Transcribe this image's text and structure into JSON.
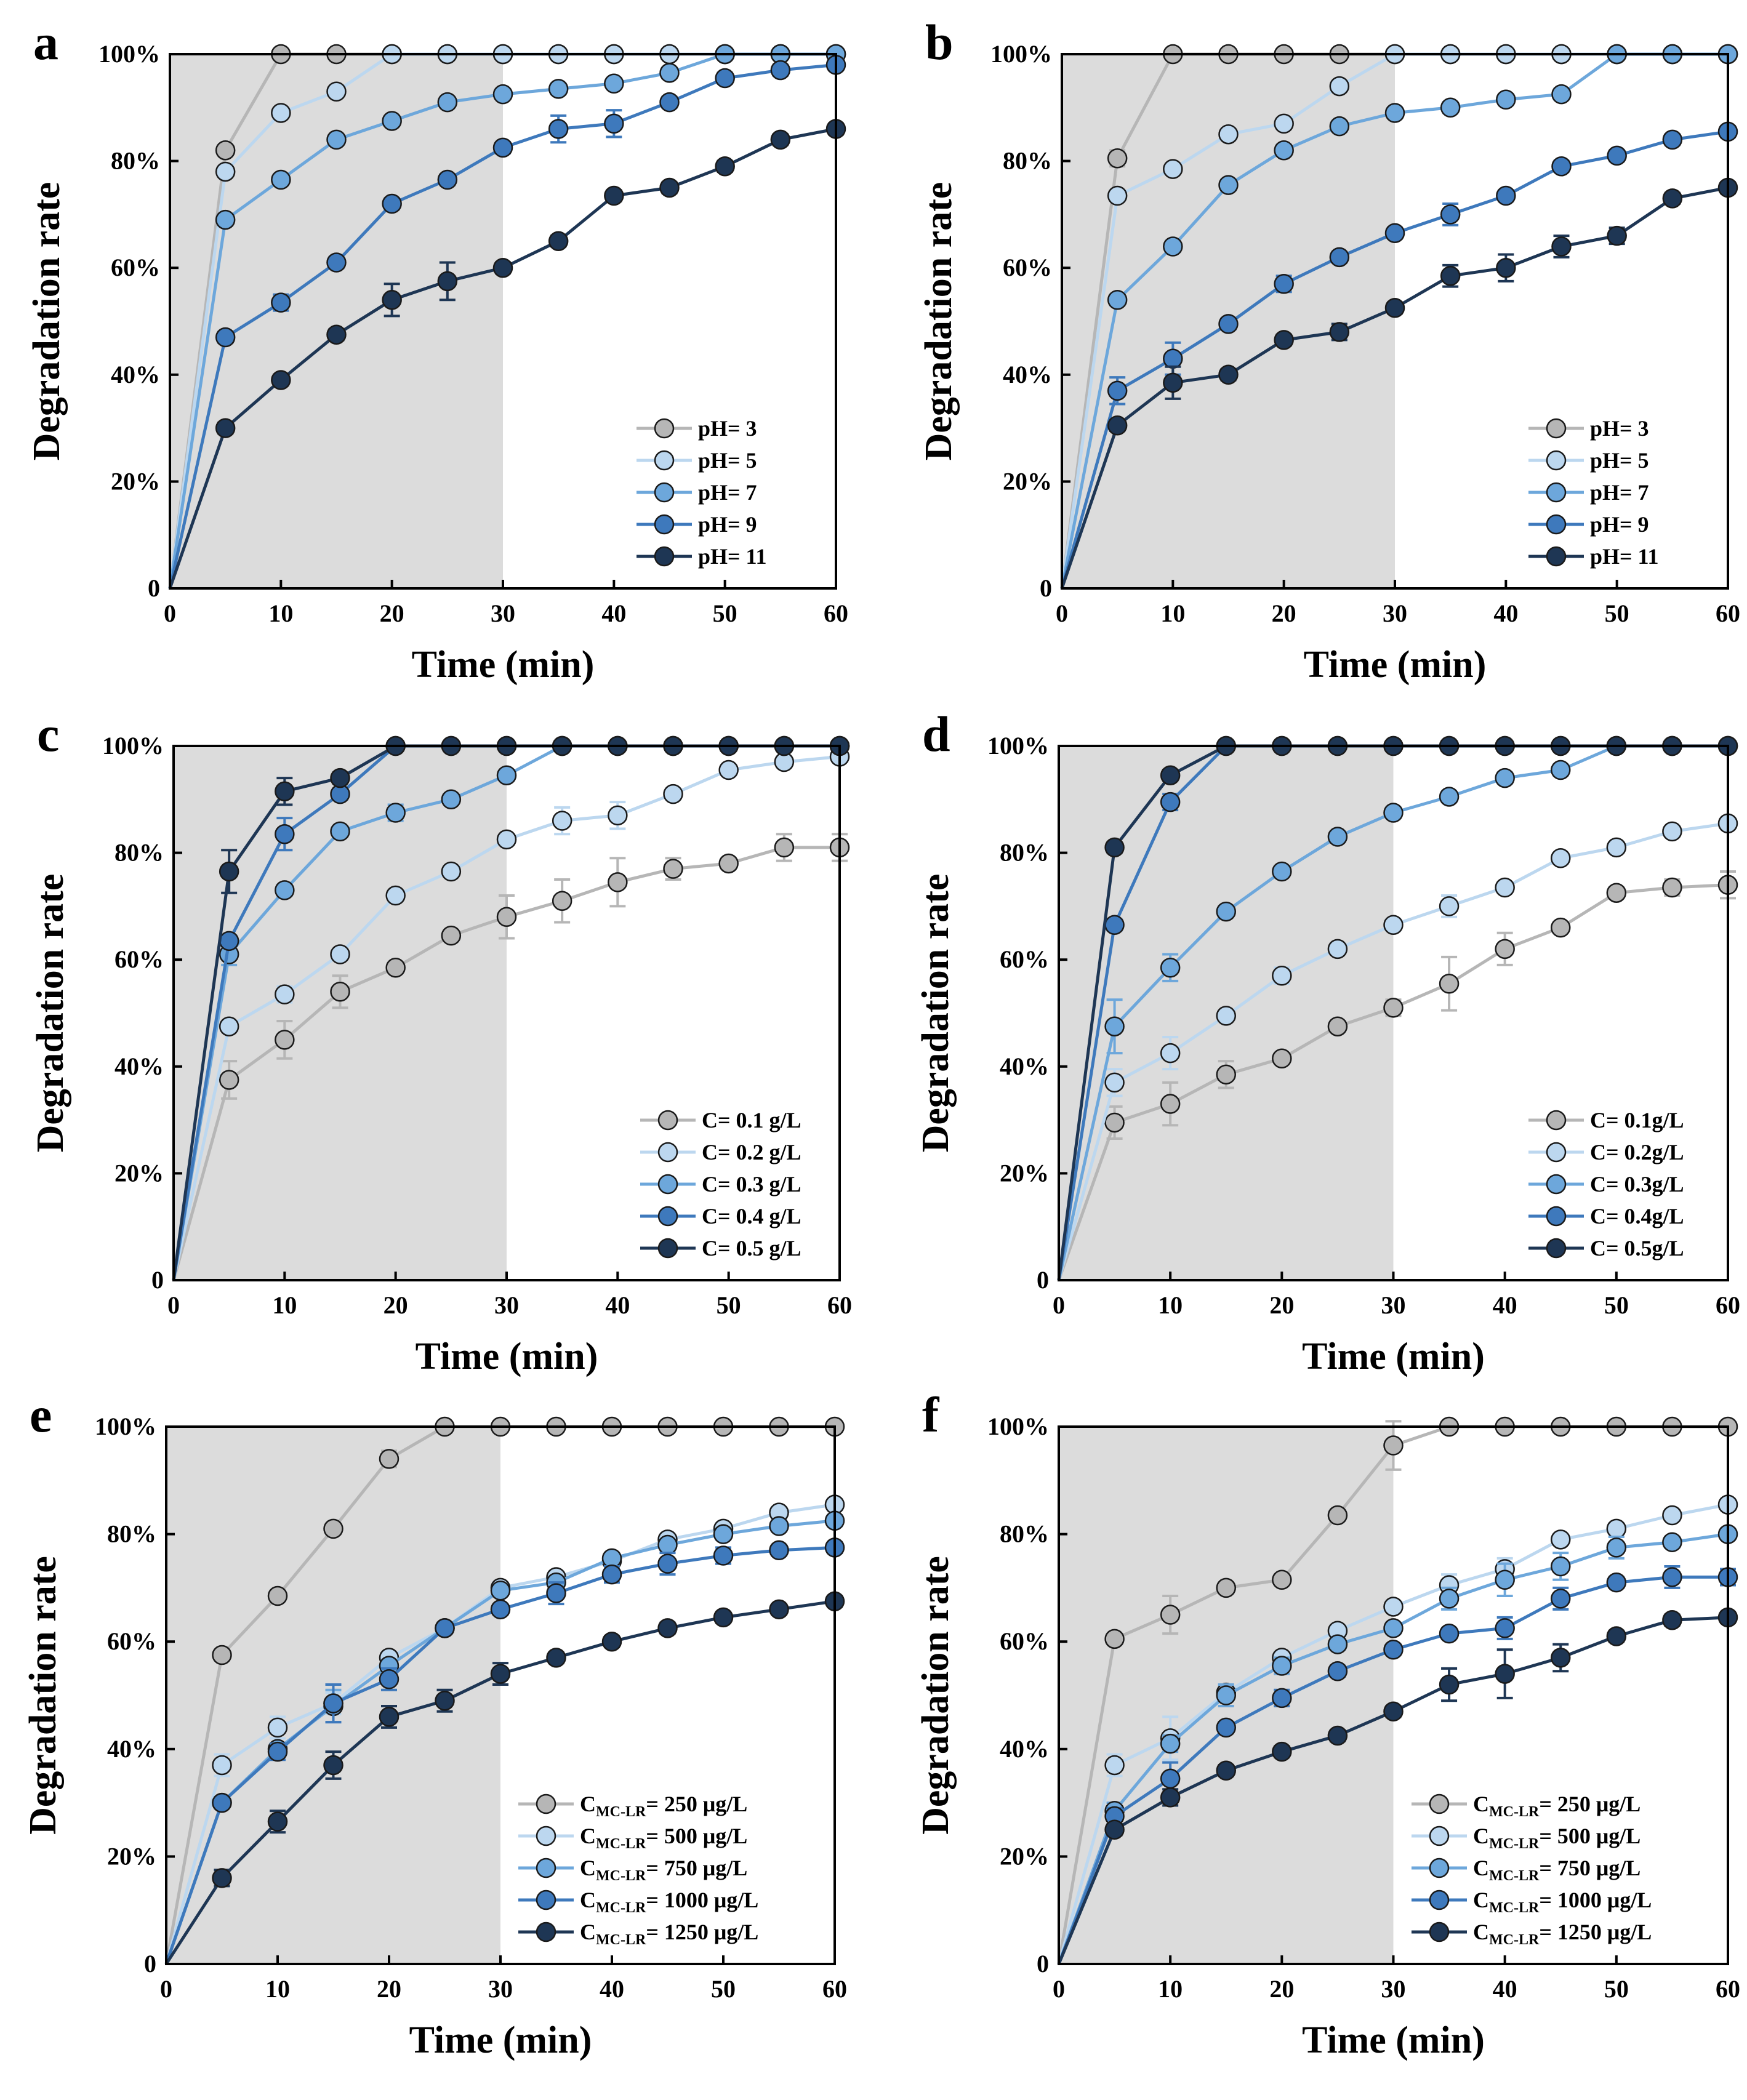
{
  "figure": {
    "x_ticks": [
      "0",
      "10",
      "20",
      "30",
      "40",
      "50",
      "60"
    ],
    "y_ticks": [
      "0",
      "20%",
      "40%",
      "60%",
      "80%",
      "100%"
    ],
    "xlabel": "Time (min)",
    "ylabel": "Degradation rate",
    "colors": [
      "#b6b6b6",
      "#bcd7ef",
      "#6da7db",
      "#3e79bc",
      "#1e3654"
    ],
    "shaded_until_min": 30
  },
  "chart_data": [
    {
      "type": "line",
      "label": "a",
      "x": [
        0,
        5,
        10,
        15,
        20,
        25,
        30,
        35,
        40,
        45,
        50,
        55,
        60
      ],
      "xlim": [
        0,
        60
      ],
      "ylim": [
        0,
        100
      ],
      "xlabel": "Time (min)",
      "ylabel": "Degradation rate",
      "legend": "bottom-right",
      "series": [
        {
          "name": "pH= 3",
          "values": [
            0,
            82,
            100,
            100,
            100,
            100,
            100,
            100,
            100,
            100,
            100,
            100,
            100
          ],
          "errors": [
            0,
            0,
            0,
            0,
            0,
            0,
            0,
            0,
            0,
            0,
            0,
            0,
            0
          ]
        },
        {
          "name": "pH= 5",
          "values": [
            0,
            78,
            89,
            93,
            100,
            100,
            100,
            100,
            100,
            100,
            100,
            100,
            100
          ],
          "errors": [
            0,
            1,
            0,
            0,
            0,
            0,
            0,
            0,
            0,
            0,
            0,
            0,
            0
          ]
        },
        {
          "name": "pH= 7",
          "values": [
            0,
            69,
            76.5,
            84,
            87.5,
            91,
            92.5,
            93.5,
            94.5,
            96.5,
            100,
            100,
            100
          ],
          "errors": [
            0,
            1,
            1,
            0,
            0,
            0,
            0,
            1,
            0,
            1,
            0,
            0,
            0
          ]
        },
        {
          "name": "pH= 9",
          "values": [
            0,
            47,
            53.5,
            61,
            72,
            76.5,
            82.5,
            86,
            87,
            91,
            95.5,
            97,
            98
          ],
          "errors": [
            0,
            1,
            1.5,
            1,
            1,
            1,
            1,
            2.5,
            2.5,
            1,
            1,
            1,
            1
          ]
        },
        {
          "name": "pH= 11",
          "values": [
            0,
            30,
            39,
            47.5,
            54,
            57.5,
            60,
            65,
            73.5,
            75,
            79,
            84,
            86
          ],
          "errors": [
            0,
            1,
            1,
            1,
            3,
            3.5,
            1,
            1,
            1,
            1,
            1,
            1,
            1
          ]
        }
      ]
    },
    {
      "type": "line",
      "label": "b",
      "x": [
        0,
        5,
        10,
        15,
        20,
        25,
        30,
        35,
        40,
        45,
        50,
        55,
        60
      ],
      "xlim": [
        0,
        60
      ],
      "ylim": [
        0,
        100
      ],
      "xlabel": "Time (min)",
      "ylabel": "Degradation rate",
      "legend": "bottom-right",
      "series": [
        {
          "name": "pH= 3",
          "values": [
            0,
            80.5,
            100,
            100,
            100,
            100,
            100,
            100,
            100,
            100,
            100,
            100,
            100
          ],
          "errors": [
            0,
            1.5,
            0,
            0,
            0,
            0,
            0,
            0,
            0,
            0,
            0,
            0,
            0
          ]
        },
        {
          "name": "pH= 5",
          "values": [
            0,
            73.5,
            78.5,
            85,
            87,
            94,
            100,
            100,
            100,
            100,
            100,
            100,
            100
          ],
          "errors": [
            0,
            1,
            1,
            1,
            1,
            1,
            0,
            0,
            0,
            0,
            0,
            0,
            0
          ]
        },
        {
          "name": "pH= 7",
          "values": [
            0,
            54,
            64,
            75.5,
            82,
            86.5,
            89,
            90,
            91.5,
            92.5,
            100,
            100,
            100
          ],
          "errors": [
            0,
            1,
            1,
            1,
            1,
            1,
            1,
            1,
            1,
            1,
            0,
            0,
            0
          ]
        },
        {
          "name": "pH= 9",
          "values": [
            0,
            37,
            43,
            49.5,
            57,
            62,
            66.5,
            70,
            73.5,
            79,
            81,
            84,
            85.5
          ],
          "errors": [
            0,
            2.5,
            3,
            1,
            1.5,
            1,
            1,
            2,
            1,
            1,
            1,
            1,
            1
          ]
        },
        {
          "name": "pH= 11",
          "values": [
            0,
            30.5,
            38.5,
            40,
            46.5,
            48,
            52.5,
            58.5,
            60,
            64,
            66,
            73,
            75
          ],
          "errors": [
            0,
            1,
            3,
            1,
            1,
            1.5,
            1,
            2,
            2.5,
            2,
            1.5,
            1,
            1
          ]
        }
      ]
    },
    {
      "type": "line",
      "label": "c",
      "x": [
        0,
        5,
        10,
        15,
        20,
        25,
        30,
        35,
        40,
        45,
        50,
        55,
        60
      ],
      "xlim": [
        0,
        60
      ],
      "ylim": [
        0,
        100
      ],
      "xlabel": "Time (min)",
      "ylabel": "Degradation rate",
      "legend": "bottom-right",
      "series": [
        {
          "name": "C= 0.1 g/L",
          "values": [
            0,
            37.5,
            45,
            54,
            58.5,
            64.5,
            68,
            71,
            74.5,
            77,
            78,
            81,
            81
          ],
          "errors": [
            0,
            3.5,
            3.5,
            3,
            1,
            1,
            4,
            4,
            4.5,
            2,
            1,
            2.5,
            2.5
          ]
        },
        {
          "name": "C= 0.2 g/L",
          "values": [
            0,
            47.5,
            53.5,
            61,
            72,
            76.5,
            82.5,
            86,
            87,
            91,
            95.5,
            97,
            98
          ],
          "errors": [
            0,
            1,
            1.5,
            1,
            1,
            1,
            1,
            2.5,
            2.5,
            1,
            1,
            1,
            1
          ]
        },
        {
          "name": "C= 0.3 g/L",
          "values": [
            0,
            61,
            73,
            84,
            87.5,
            90,
            94.5,
            100,
            100,
            100,
            100,
            100,
            100
          ],
          "errors": [
            0,
            2,
            1,
            1,
            1.5,
            1,
            1,
            0,
            0,
            0,
            0,
            0,
            0
          ]
        },
        {
          "name": "C= 0.4 g/L",
          "values": [
            0,
            63.5,
            83.5,
            91,
            100,
            100,
            100,
            100,
            100,
            100,
            100,
            100,
            100
          ],
          "errors": [
            0,
            1,
            3,
            1,
            0,
            0,
            0,
            0,
            0,
            0,
            0,
            0,
            0
          ]
        },
        {
          "name": "C= 0.5 g/L",
          "values": [
            0,
            76.5,
            91.5,
            94,
            100,
            100,
            100,
            100,
            100,
            100,
            100,
            100,
            100
          ],
          "errors": [
            0,
            4,
            2.5,
            1,
            0,
            0,
            0,
            0,
            0,
            0,
            0,
            0,
            0
          ]
        }
      ]
    },
    {
      "type": "line",
      "label": "d",
      "x": [
        0,
        5,
        10,
        15,
        20,
        25,
        30,
        35,
        40,
        45,
        50,
        55,
        60
      ],
      "xlim": [
        0,
        60
      ],
      "ylim": [
        0,
        100
      ],
      "xlabel": "Time (min)",
      "ylabel": "Degradation rate",
      "legend": "bottom-right",
      "series": [
        {
          "name": "C= 0.1g/L",
          "values": [
            0,
            29.5,
            33,
            38.5,
            41.5,
            47.5,
            51,
            55.5,
            62,
            66,
            72.5,
            73.5,
            74
          ],
          "errors": [
            0,
            3,
            4,
            2.5,
            1,
            1,
            1.5,
            5,
            3,
            1,
            1,
            1.5,
            2.5
          ]
        },
        {
          "name": "C= 0.2g/L",
          "values": [
            0,
            37,
            42.5,
            49.5,
            57,
            62,
            66.5,
            70,
            73.5,
            79,
            81,
            84,
            85.5
          ],
          "errors": [
            0,
            2.5,
            3,
            1,
            1.5,
            1,
            1,
            2,
            1,
            1,
            1,
            1,
            1
          ]
        },
        {
          "name": "C= 0.3g/L",
          "values": [
            0,
            47.5,
            58.5,
            69,
            76.5,
            83,
            87.5,
            90.5,
            94,
            95.5,
            100,
            100,
            100
          ],
          "errors": [
            0,
            5,
            2.5,
            1,
            1,
            1,
            1,
            1,
            1,
            1,
            0,
            0,
            0
          ]
        },
        {
          "name": "C= 0.4g/L",
          "values": [
            0,
            66.5,
            89.5,
            100,
            100,
            100,
            100,
            100,
            100,
            100,
            100,
            100,
            100
          ],
          "errors": [
            0,
            1,
            1.5,
            0,
            0,
            0,
            0,
            0,
            0,
            0,
            0,
            0,
            0
          ]
        },
        {
          "name": "C= 0.5g/L",
          "values": [
            0,
            81,
            94.5,
            100,
            100,
            100,
            100,
            100,
            100,
            100,
            100,
            100,
            100
          ],
          "errors": [
            0,
            1,
            1,
            0,
            0,
            0,
            0,
            0,
            0,
            0,
            0,
            0,
            0
          ]
        }
      ]
    },
    {
      "type": "line",
      "label": "e",
      "x": [
        0,
        5,
        10,
        15,
        20,
        25,
        30,
        35,
        40,
        45,
        50,
        55,
        60
      ],
      "xlim": [
        0,
        60
      ],
      "ylim": [
        0,
        100
      ],
      "xlabel": "Time (min)",
      "ylabel": "Degradation rate",
      "legend": "bottom-right",
      "series": [
        {
          "name": "C",
          "sub": "MC-LR",
          "rest": "= 250 μg/L",
          "values": [
            0,
            57.5,
            68.5,
            81,
            94,
            100,
            100,
            100,
            100,
            100,
            100,
            100,
            100
          ],
          "errors": [
            0,
            1,
            1,
            1,
            1.5,
            0,
            0,
            0,
            0,
            0,
            0,
            0,
            0
          ]
        },
        {
          "name": "C",
          "sub": "MC-LR",
          "rest": "= 500 μg/L",
          "values": [
            0,
            37,
            44,
            48.5,
            57,
            62.5,
            70,
            72,
            75,
            79,
            81,
            84,
            85.5
          ],
          "errors": [
            0,
            2,
            2,
            2,
            1,
            1,
            1,
            1,
            1,
            1,
            1,
            1,
            1
          ]
        },
        {
          "name": "C",
          "sub": "MC-LR",
          "rest": "= 750 μg/L",
          "values": [
            0,
            30,
            40,
            48,
            55.5,
            62.5,
            69.5,
            71,
            75.5,
            78,
            80,
            81.5,
            82.5
          ],
          "errors": [
            0,
            1,
            1,
            3,
            1,
            1,
            1,
            1,
            1,
            1,
            1,
            1,
            1
          ]
        },
        {
          "name": "C",
          "sub": "MC-LR",
          "rest": "= 1000 μg/L",
          "values": [
            0,
            30,
            39.5,
            48.5,
            53,
            62.5,
            66,
            69,
            72.5,
            74.5,
            76,
            77,
            77.5
          ],
          "errors": [
            0,
            1,
            1.5,
            3.5,
            2,
            1,
            1,
            2,
            1.5,
            2,
            1.5,
            1,
            1
          ]
        },
        {
          "name": "C",
          "sub": "MC-LR",
          "rest": "= 1250 μg/L",
          "values": [
            0,
            16,
            26.5,
            37,
            46,
            49,
            54,
            57,
            60,
            62.5,
            64.5,
            66,
            67.5
          ],
          "errors": [
            0,
            1.5,
            2,
            2.5,
            2,
            2,
            2,
            1,
            1,
            1,
            1,
            1,
            1
          ]
        }
      ]
    },
    {
      "type": "line",
      "label": "f",
      "x": [
        0,
        5,
        10,
        15,
        20,
        25,
        30,
        35,
        40,
        45,
        50,
        55,
        60
      ],
      "xlim": [
        0,
        60
      ],
      "ylim": [
        0,
        100
      ],
      "xlabel": "Time (min)",
      "ylabel": "Degradation rate",
      "legend": "bottom-right",
      "series": [
        {
          "name": "C",
          "sub": "MC-LR",
          "rest": "= 250 μg/L",
          "values": [
            0,
            60.5,
            65,
            70,
            71.5,
            83.5,
            96.5,
            100,
            100,
            100,
            100,
            100,
            100
          ],
          "errors": [
            0,
            1,
            3.5,
            1,
            1,
            1,
            4.5,
            0,
            0,
            0,
            0,
            0,
            0
          ]
        },
        {
          "name": "C",
          "sub": "MC-LR",
          "rest": "= 500 μg/L",
          "values": [
            0,
            37,
            42,
            50.5,
            57,
            62,
            66.5,
            70.5,
            73.5,
            79,
            81,
            83.5,
            85.5
          ],
          "errors": [
            0,
            2,
            4,
            1.5,
            1,
            1,
            1,
            2,
            2,
            1,
            1,
            1,
            1
          ]
        },
        {
          "name": "C",
          "sub": "MC-LR",
          "rest": "= 750 μg/L",
          "values": [
            0,
            28.5,
            41,
            50,
            55.5,
            59.5,
            62.5,
            68,
            71.5,
            74,
            77.5,
            78.5,
            80
          ],
          "errors": [
            0,
            1.5,
            1.5,
            2,
            1.5,
            1,
            1,
            2,
            3,
            2.5,
            2,
            1,
            1
          ]
        },
        {
          "name": "C",
          "sub": "MC-LR",
          "rest": "= 1000 μg/L",
          "values": [
            0,
            27.5,
            34.5,
            44,
            49.5,
            54.5,
            58.5,
            61.5,
            62.5,
            68,
            71,
            72,
            72
          ],
          "errors": [
            0,
            1.5,
            3,
            1,
            1.5,
            1,
            1,
            1,
            2,
            2,
            1,
            2,
            1.5
          ]
        },
        {
          "name": "C",
          "sub": "MC-LR",
          "rest": "= 1250 μg/L",
          "values": [
            0,
            25,
            31,
            36,
            39.5,
            42.5,
            47,
            52,
            54,
            57,
            61,
            64,
            64.5
          ],
          "errors": [
            0,
            1,
            1.5,
            1,
            1,
            1,
            1,
            3,
            4.5,
            2.5,
            1,
            1,
            1
          ]
        }
      ]
    }
  ]
}
